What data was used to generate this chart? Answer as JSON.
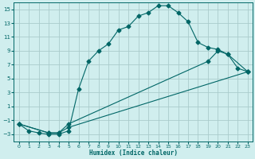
{
  "xlabel": "Humidex (Indice chaleur)",
  "bg_color": "#d0eeee",
  "line_color": "#006666",
  "grid_color": "#aacccc",
  "ylim": [
    -4,
    16
  ],
  "xlim": [
    -0.5,
    23.5
  ],
  "yticks": [
    -3,
    -1,
    1,
    3,
    5,
    7,
    9,
    11,
    13,
    15
  ],
  "xticks": [
    0,
    1,
    2,
    3,
    4,
    5,
    6,
    7,
    8,
    9,
    10,
    11,
    12,
    13,
    14,
    15,
    16,
    17,
    18,
    19,
    20,
    21,
    22,
    23
  ],
  "line1_x": [
    0,
    1,
    2,
    3,
    4,
    5,
    6,
    7,
    8,
    9,
    10,
    11,
    12,
    13,
    14,
    15,
    16,
    17,
    18,
    19,
    20,
    21,
    22,
    23
  ],
  "line1_y": [
    -1.5,
    -2.5,
    -2.8,
    -3.0,
    -3.0,
    -2.5,
    3.5,
    7.5,
    9.0,
    10.0,
    12.0,
    12.5,
    14.0,
    14.5,
    15.5,
    15.5,
    14.5,
    13.2,
    10.2,
    9.5,
    9.2,
    8.5,
    6.5,
    6.0
  ],
  "line2_x": [
    0,
    3,
    4,
    5,
    23
  ],
  "line2_y": [
    -1.5,
    -2.8,
    -2.8,
    -2.0,
    6.0
  ],
  "line3_x": [
    0,
    3,
    4,
    5,
    19,
    20,
    21,
    23
  ],
  "line3_y": [
    -1.5,
    -2.8,
    -2.8,
    -1.5,
    7.5,
    9.0,
    8.5,
    6.0
  ]
}
